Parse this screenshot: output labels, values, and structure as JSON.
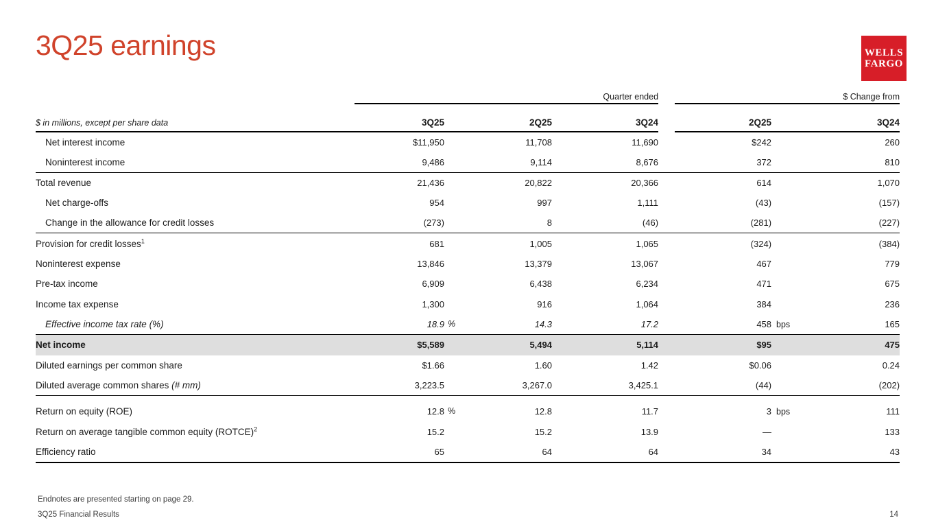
{
  "slide": {
    "title": "3Q25 earnings",
    "logo": {
      "line1": "WELLS",
      "line2": "FARGO"
    },
    "colors": {
      "accent": "#D0432B",
      "logo_red": "#D71E28",
      "highlight": "#DEDEDE",
      "rule": "#000000"
    },
    "footer": {
      "endnote": "Endnotes are presented starting on page 29.",
      "deck_title": "3Q25 Financial Results",
      "page_number": "14"
    }
  },
  "table": {
    "unit_note": "$ in millions, except per share data",
    "group_headers": {
      "quarter_ended": "Quarter ended",
      "change_from": "$ Change from"
    },
    "columns": [
      "3Q25",
      "2Q25",
      "3Q24",
      "2Q25",
      "3Q24"
    ],
    "rows": [
      {
        "label": "Net interest income",
        "indent": true,
        "q1": "$11,950",
        "q2": "11,708",
        "q3": "11,690",
        "c1": "$242",
        "c2": "260"
      },
      {
        "label": "Noninterest income",
        "indent": true,
        "rule": "thin",
        "q1": "9,486",
        "q2": "9,114",
        "q3": "8,676",
        "c1": "372",
        "c2": "810"
      },
      {
        "label": "Total revenue",
        "q1": "21,436",
        "q2": "20,822",
        "q3": "20,366",
        "c1": "614",
        "c2": "1,070"
      },
      {
        "label": "Net charge-offs",
        "indent": true,
        "q1": "954",
        "q2": "997",
        "q3": "1,111",
        "c1": "(43)",
        "c2": "(157)"
      },
      {
        "label": "Change in the allowance for credit losses",
        "indent": true,
        "rule": "thin",
        "q1": "(273)",
        "q2": "8",
        "q3": "(46)",
        "c1": "(281)",
        "c2": "(227)"
      },
      {
        "label": "Provision for credit losses",
        "sup": "1",
        "q1": "681",
        "q2": "1,005",
        "q3": "1,065",
        "c1": "(324)",
        "c2": "(384)"
      },
      {
        "label": "Noninterest expense",
        "q1": "13,846",
        "q2": "13,379",
        "q3": "13,067",
        "c1": "467",
        "c2": "779"
      },
      {
        "label": "Pre-tax income",
        "q1": "6,909",
        "q2": "6,438",
        "q3": "6,234",
        "c1": "471",
        "c2": "675"
      },
      {
        "label": "Income tax expense",
        "q1": "1,300",
        "q2": "916",
        "q3": "1,064",
        "c1": "384",
        "c2": "236"
      },
      {
        "label": "Effective income tax rate (%)",
        "indent": true,
        "italic": true,
        "rule": "thin",
        "q1": "18.9",
        "q1_unit": "%",
        "q2": "14.3",
        "q3": "17.2",
        "c1": "458",
        "c1_unit": "bps",
        "c2": "165"
      },
      {
        "label": "Net income",
        "bold": true,
        "highlight": true,
        "q1": "$5,589",
        "q2": "5,494",
        "q3": "5,114",
        "c1": "$95",
        "c2": "475"
      },
      {
        "label": "Diluted earnings per common share",
        "q1": "$1.66",
        "q2": "1.60",
        "q3": "1.42",
        "c1": "$0.06",
        "c2": "0.24"
      },
      {
        "label": "Diluted average common shares ",
        "label_italic": "(# mm)",
        "rule": "thin",
        "q1": "3,223.5",
        "q2": "3,267.0",
        "q3": "3,425.1",
        "c1": "(44)",
        "c2": "(202)"
      },
      {
        "label": "Return on equity (ROE)",
        "spacer_above": true,
        "q1": "12.8",
        "q1_unit": "%",
        "q2": "12.8",
        "q3": "11.7",
        "c1": "3",
        "c1_unit": "bps",
        "c2": "111"
      },
      {
        "label": "Return on average tangible common equity (ROTCE)",
        "sup": "2",
        "q1": "15.2",
        "q2": "15.2",
        "q3": "13.9",
        "c1": "—",
        "c2": "133"
      },
      {
        "label": "Efficiency ratio",
        "rule": "thick",
        "q1": "65",
        "q2": "64",
        "q3": "64",
        "c1": "34",
        "c2": "43"
      }
    ]
  }
}
